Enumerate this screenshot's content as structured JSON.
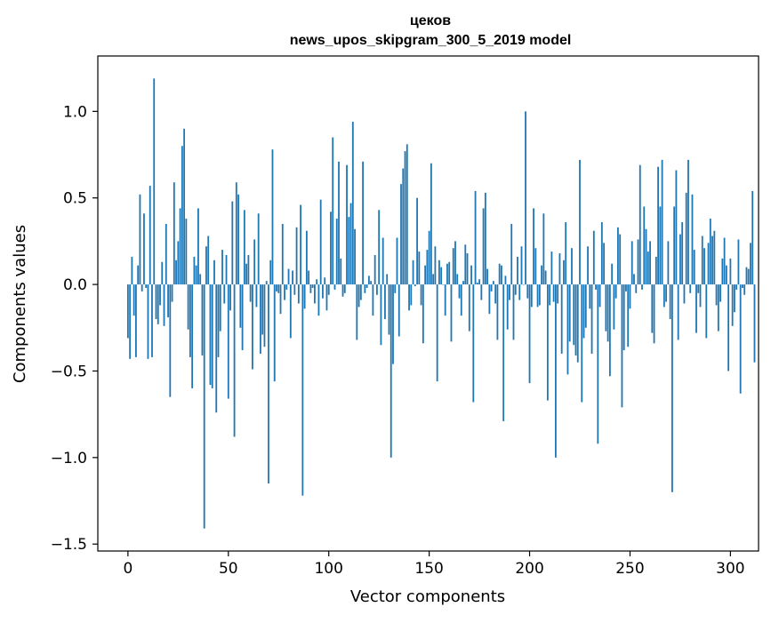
{
  "chart_data": {
    "type": "bar",
    "title_line1": "цеков",
    "title_line2": "news_upos_skipgram_300_5_2019 model",
    "xlabel": "Vector components",
    "ylabel": "Components values",
    "xlim": [
      -15,
      314
    ],
    "ylim": [
      -1.54,
      1.32
    ],
    "xticks": [
      0,
      50,
      100,
      150,
      200,
      250,
      300
    ],
    "xtick_labels": [
      "0",
      "50",
      "100",
      "150",
      "200",
      "250",
      "300"
    ],
    "yticks": [
      -1.5,
      -1.0,
      -0.5,
      0.0,
      0.5,
      1.0
    ],
    "ytick_labels": [
      "−1.5",
      "−1.0",
      "−0.5",
      "0.0",
      "0.5",
      "1.0"
    ],
    "bar_color": "#1f77b4",
    "values": [
      -0.31,
      -0.43,
      0.16,
      -0.18,
      -0.42,
      0.11,
      0.52,
      -0.04,
      0.41,
      -0.02,
      -0.43,
      0.57,
      -0.42,
      1.19,
      -0.2,
      -0.23,
      -0.12,
      0.13,
      -0.24,
      0.35,
      -0.19,
      -0.65,
      -0.1,
      0.59,
      0.14,
      0.25,
      0.44,
      0.8,
      0.9,
      0.38,
      -0.26,
      -0.42,
      -0.6,
      0.16,
      0.11,
      0.44,
      0.06,
      -0.41,
      -1.41,
      0.22,
      0.28,
      -0.58,
      -0.6,
      0.14,
      -0.74,
      -0.42,
      -0.27,
      0.2,
      -0.11,
      0.17,
      -0.66,
      -0.15,
      0.48,
      -0.88,
      0.59,
      0.52,
      -0.25,
      -0.38,
      0.43,
      0.12,
      0.17,
      -0.1,
      -0.49,
      0.26,
      -0.13,
      0.41,
      -0.4,
      -0.29,
      -0.36,
      0.02,
      -1.15,
      0.14,
      0.78,
      -0.56,
      -0.04,
      -0.05,
      -0.17,
      0.35,
      -0.09,
      -0.03,
      0.09,
      -0.31,
      0.08,
      -0.06,
      0.33,
      -0.11,
      0.46,
      -1.22,
      -0.14,
      0.31,
      0.08,
      -0.05,
      -0.02,
      -0.11,
      0.03,
      -0.18,
      0.49,
      -0.08,
      0.04,
      -0.15,
      -0.06,
      0.42,
      0.85,
      -0.03,
      0.38,
      0.71,
      0.15,
      -0.07,
      -0.05,
      0.69,
      0.39,
      0.47,
      0.94,
      0.32,
      -0.32,
      -0.13,
      -0.09,
      0.71,
      -0.05,
      -0.02,
      0.05,
      0.02,
      -0.18,
      0.17,
      -0.06,
      0.43,
      -0.35,
      0.27,
      -0.2,
      0.06,
      -0.29,
      -1.0,
      -0.46,
      -0.05,
      0.27,
      -0.3,
      0.58,
      0.67,
      0.77,
      0.81,
      -0.15,
      -0.12,
      0.14,
      -0.01,
      0.5,
      0.19,
      -0.12,
      -0.34,
      0.11,
      0.2,
      0.31,
      0.7,
      0.06,
      0.22,
      -0.56,
      0.14,
      0.1,
      0.0,
      -0.18,
      0.12,
      0.13,
      -0.33,
      0.21,
      0.25,
      0.06,
      -0.08,
      -0.18,
      0.02,
      0.23,
      0.18,
      -0.27,
      0.11,
      -0.68,
      0.54,
      0.01,
      0.03,
      -0.09,
      0.44,
      0.53,
      0.09,
      -0.17,
      -0.04,
      0.02,
      -0.11,
      -0.32,
      0.12,
      0.11,
      -0.79,
      0.05,
      -0.26,
      -0.09,
      0.35,
      -0.32,
      -0.06,
      0.16,
      -0.09,
      0.22,
      0.0,
      1.0,
      -0.08,
      -0.57,
      -0.13,
      0.44,
      0.21,
      -0.13,
      -0.12,
      0.11,
      0.41,
      0.08,
      -0.67,
      -0.12,
      0.19,
      -0.1,
      -1.0,
      -0.11,
      0.18,
      -0.4,
      0.14,
      0.36,
      -0.52,
      -0.33,
      0.21,
      -0.35,
      -0.41,
      -0.45,
      0.72,
      -0.68,
      -0.31,
      -0.25,
      0.22,
      -0.14,
      -0.4,
      0.31,
      -0.03,
      -0.92,
      -0.13,
      0.36,
      0.24,
      -0.27,
      -0.33,
      -0.53,
      0.12,
      -0.26,
      -0.08,
      0.33,
      0.29,
      -0.71,
      -0.38,
      -0.04,
      -0.36,
      -0.14,
      0.25,
      0.06,
      -0.05,
      0.26,
      0.69,
      -0.03,
      0.45,
      0.32,
      0.19,
      0.25,
      -0.28,
      -0.34,
      0.16,
      0.68,
      0.45,
      0.72,
      -0.13,
      -0.1,
      0.25,
      -0.2,
      -1.2,
      0.45,
      0.66,
      -0.32,
      0.29,
      0.36,
      -0.11,
      0.53,
      0.72,
      -0.05,
      0.52,
      0.2,
      -0.28,
      -0.05,
      -0.13,
      0.28,
      0.21,
      -0.31,
      0.24,
      0.38,
      0.28,
      0.31,
      -0.12,
      -0.27,
      -0.1,
      0.15,
      0.27,
      0.11,
      -0.5,
      0.15,
      -0.24,
      -0.16,
      -0.03,
      0.26,
      -0.63,
      -0.02,
      -0.06,
      0.1,
      0.09,
      0.24,
      0.54,
      -0.45
    ]
  }
}
